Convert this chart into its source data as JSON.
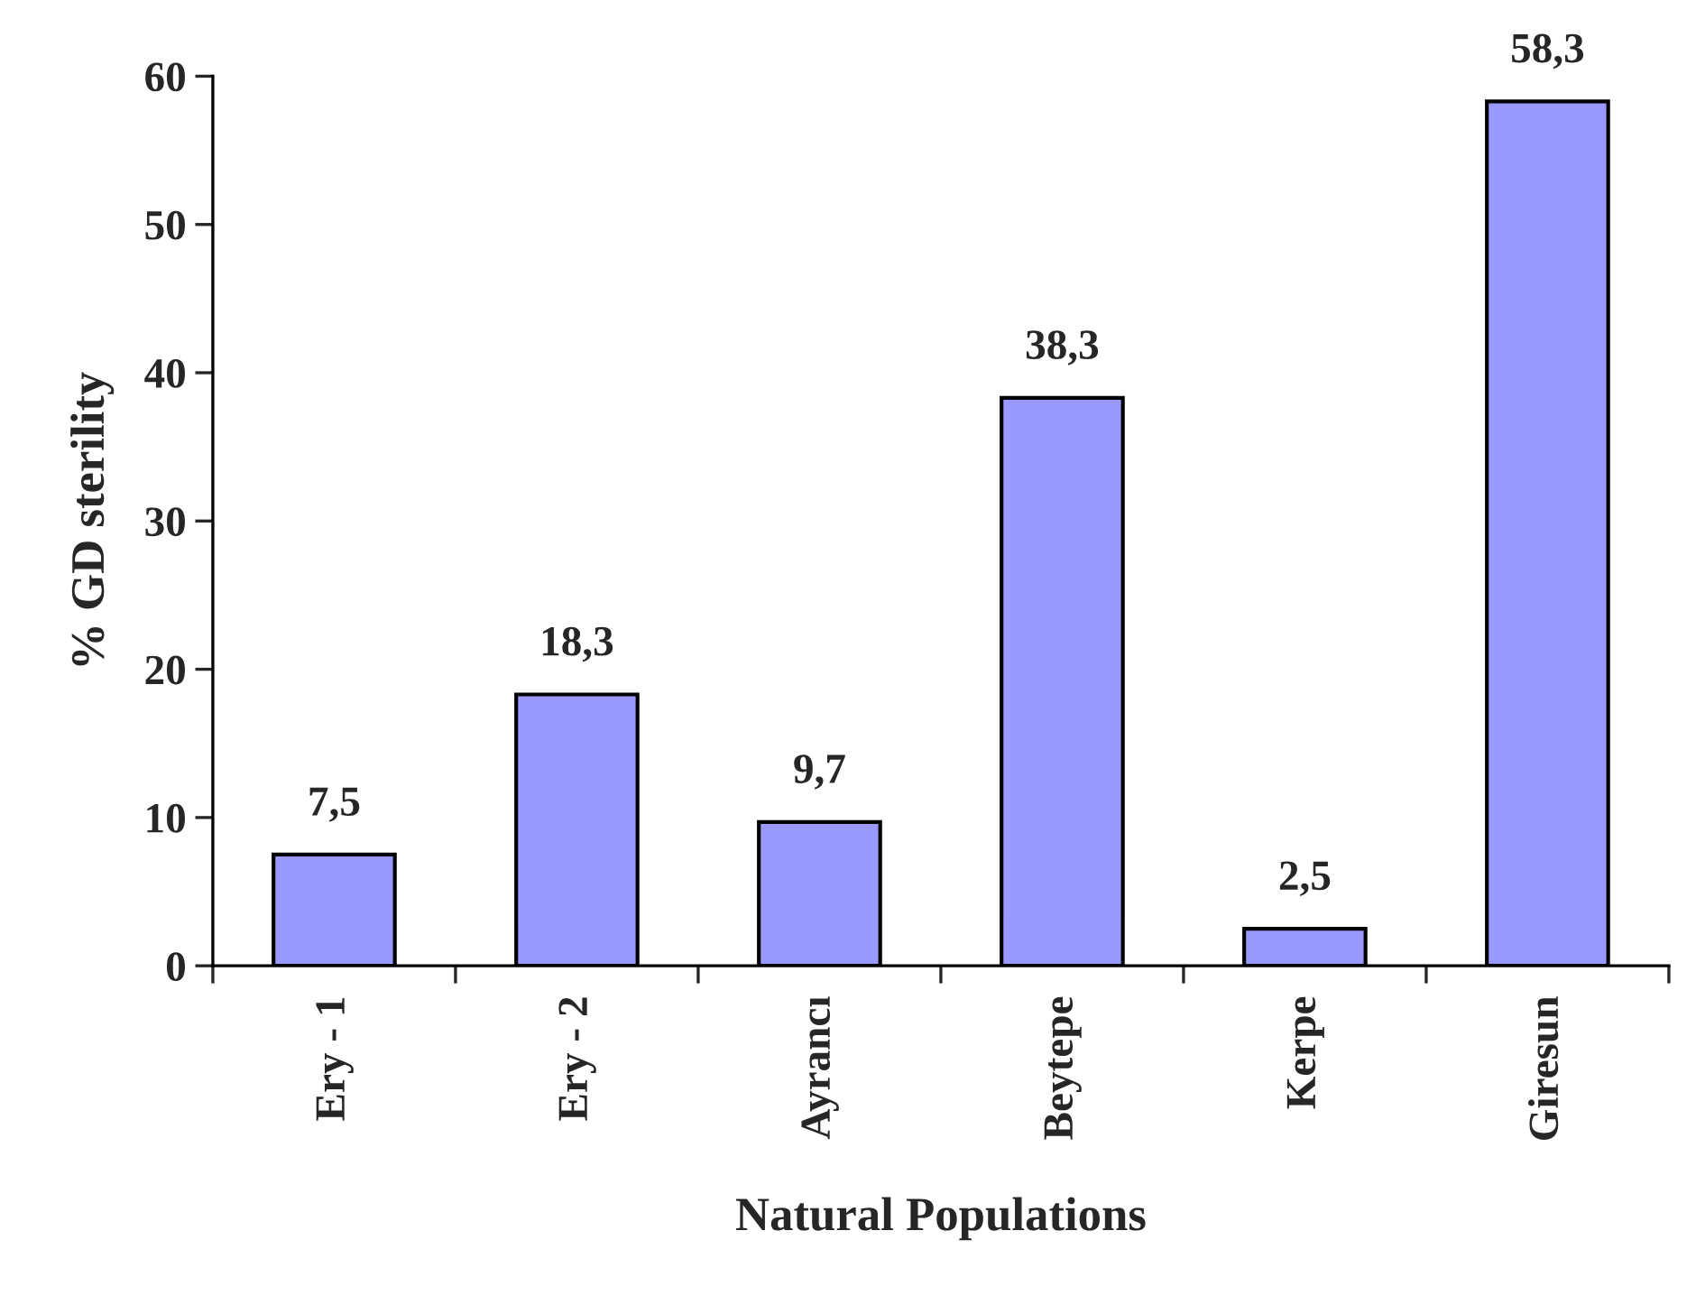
{
  "chart_data": {
    "type": "bar",
    "xlabel": "Natural Populations",
    "ylabel": "% GD sterility",
    "categories": [
      "Ery - 1",
      "Ery - 2",
      "Ayrancı",
      "Beytepe",
      "Kerpe",
      "Giresun"
    ],
    "values": [
      7.5,
      18.3,
      9.7,
      38.3,
      2.5,
      58.3
    ],
    "value_labels": [
      "7,5",
      "18,3",
      "9,7",
      "38,3",
      "2,5",
      "58,3"
    ],
    "color": "#9999ff",
    "ylim": [
      0,
      60
    ],
    "yticks": [
      0,
      10,
      20,
      30,
      40,
      50,
      60
    ],
    "grid": false,
    "legend": false
  }
}
